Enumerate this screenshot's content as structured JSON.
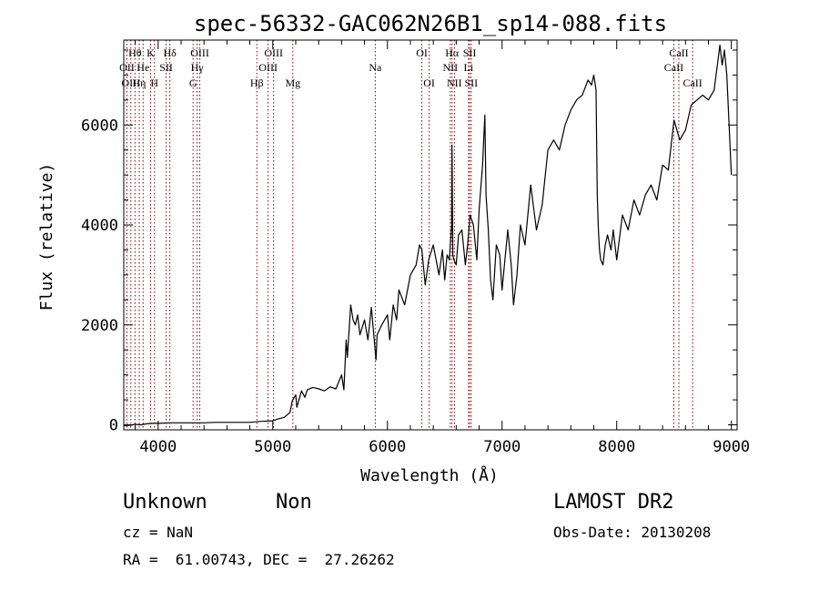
{
  "chart_data": {
    "type": "line",
    "title": "spec-56332-GAC062N26B1_sp14-088.fits",
    "xlabel": "Wavelength (Å)",
    "ylabel": "Flux (relative)",
    "xlim": [
      3700,
      9050
    ],
    "ylim": [
      -100,
      7700
    ],
    "xticks": [
      4000,
      5000,
      6000,
      7000,
      8000,
      9000
    ],
    "yticks": [
      0,
      2000,
      4000,
      6000
    ],
    "grid": false,
    "line_color": "#000000",
    "marker_color": "#8b0000",
    "series": [
      {
        "x": [
          3700,
          3750,
          3800,
          3850,
          3900,
          3950,
          4000,
          4100,
          4200,
          4300,
          4400,
          4500,
          4600,
          4700,
          4800,
          4900,
          5000,
          5050,
          5100,
          5150,
          5170,
          5200,
          5210,
          5250,
          5280,
          5300,
          5350,
          5400,
          5450,
          5500,
          5550,
          5600,
          5620,
          5640,
          5650,
          5680,
          5700,
          5720,
          5740,
          5760,
          5800,
          5830,
          5860,
          5900,
          5910,
          5950,
          6000,
          6020,
          6050,
          6080,
          6100,
          6150,
          6200,
          6250,
          6280,
          6300,
          6330,
          6360,
          6400,
          6450,
          6480,
          6500,
          6520,
          6540,
          6560,
          6563,
          6570,
          6580,
          6600,
          6620,
          6650,
          6680,
          6700,
          6720,
          6750,
          6780,
          6800,
          6830,
          6850,
          6860,
          6880,
          6900,
          6920,
          6950,
          6980,
          7000,
          7050,
          7080,
          7100,
          7130,
          7160,
          7200,
          7250,
          7300,
          7350,
          7400,
          7450,
          7500,
          7550,
          7600,
          7650,
          7700,
          7750,
          7780,
          7800,
          7820,
          7830,
          7840,
          7850,
          7860,
          7880,
          7900,
          7920,
          7950,
          7970,
          8000,
          8050,
          8100,
          8150,
          8200,
          8250,
          8300,
          8350,
          8400,
          8450,
          8500,
          8550,
          8600,
          8650,
          8700,
          8750,
          8800,
          8850,
          8900,
          8920,
          8940,
          8960,
          8980,
          9000
        ],
        "y": [
          -20,
          -10,
          10,
          0,
          20,
          30,
          30,
          40,
          40,
          40,
          40,
          50,
          50,
          50,
          50,
          70,
          80,
          120,
          150,
          250,
          480,
          600,
          350,
          680,
          550,
          700,
          750,
          720,
          680,
          760,
          720,
          1000,
          700,
          1700,
          1350,
          2400,
          2100,
          2000,
          2200,
          1800,
          2100,
          1700,
          2350,
          1300,
          1800,
          2000,
          2200,
          1700,
          2400,
          2100,
          2700,
          2400,
          3000,
          3200,
          3600,
          3500,
          2800,
          3300,
          3600,
          3000,
          3500,
          2900,
          3400,
          3300,
          4000,
          5600,
          3400,
          3300,
          3200,
          3800,
          3900,
          3200,
          3600,
          4200,
          4000,
          3300,
          4300,
          5200,
          6200,
          4600,
          3900,
          2900,
          2500,
          3600,
          3400,
          2700,
          3900,
          3200,
          2400,
          3000,
          4000,
          3600,
          4800,
          3900,
          4400,
          5500,
          5700,
          5500,
          6000,
          6300,
          6500,
          6600,
          6900,
          6800,
          7000,
          6700,
          4600,
          3900,
          3500,
          3300,
          3200,
          3600,
          3800,
          3500,
          3900,
          3300,
          4200,
          3900,
          4500,
          4200,
          4600,
          4800,
          4500,
          5200,
          5100,
          6100,
          5700,
          5900,
          6400,
          6500,
          6600,
          6500,
          6700,
          7600,
          7200,
          7500,
          7000,
          6000,
          5000
        ]
      }
    ],
    "line_markers": [
      {
        "label": "Hθ",
        "x": 3798,
        "row": 1
      },
      {
        "label": "OII",
        "x": 3727,
        "row": 2
      },
      {
        "label": "OIII",
        "x": 3762,
        "row": 3
      },
      {
        "label": "K",
        "x": 3934,
        "row": 1
      },
      {
        "label": "He",
        "x": 3869,
        "row": 2
      },
      {
        "label": "Hη",
        "x": 3835,
        "row": 3
      },
      {
        "label": "H",
        "x": 3968,
        "row": 3
      },
      {
        "label": "SII",
        "x": 4070,
        "row": 2
      },
      {
        "label": "Hδ",
        "x": 4102,
        "row": 1
      },
      {
        "label": "OIII",
        "x": 4363,
        "row": 1
      },
      {
        "label": "Hγ",
        "x": 4340,
        "row": 2
      },
      {
        "label": "G",
        "x": 4305,
        "row": 3
      },
      {
        "label": "Hβ",
        "x": 4861,
        "row": 3
      },
      {
        "label": "OIII",
        "x": 5007,
        "row": 1
      },
      {
        "label": "OIII",
        "x": 4959,
        "row": 2
      },
      {
        "label": "Mg",
        "x": 5175,
        "row": 3
      },
      {
        "label": "Na",
        "x": 5894,
        "row": 2
      },
      {
        "label": "OI",
        "x": 6300,
        "row": 1
      },
      {
        "label": "OI",
        "x": 6364,
        "row": 3
      },
      {
        "label": "Hα",
        "x": 6563,
        "row": 1
      },
      {
        "label": "NII",
        "x": 6548,
        "row": 2
      },
      {
        "label": "NII",
        "x": 6584,
        "row": 3
      },
      {
        "label": "SII",
        "x": 6717,
        "row": 1
      },
      {
        "label": "Li",
        "x": 6707,
        "row": 2
      },
      {
        "label": "SII",
        "x": 6731,
        "row": 3
      },
      {
        "label": "CaII",
        "x": 8542,
        "row": 1
      },
      {
        "label": "CaII",
        "x": 8498,
        "row": 2
      },
      {
        "label": "CaII",
        "x": 8662,
        "row": 3
      }
    ]
  },
  "info": {
    "class": "Unknown",
    "subclass": "Non",
    "survey": "LAMOST DR2",
    "cz": "cz = NaN",
    "obs_date": "Obs-Date: 20130208",
    "radec": "RA =  61.00743, DEC =  27.26262"
  }
}
